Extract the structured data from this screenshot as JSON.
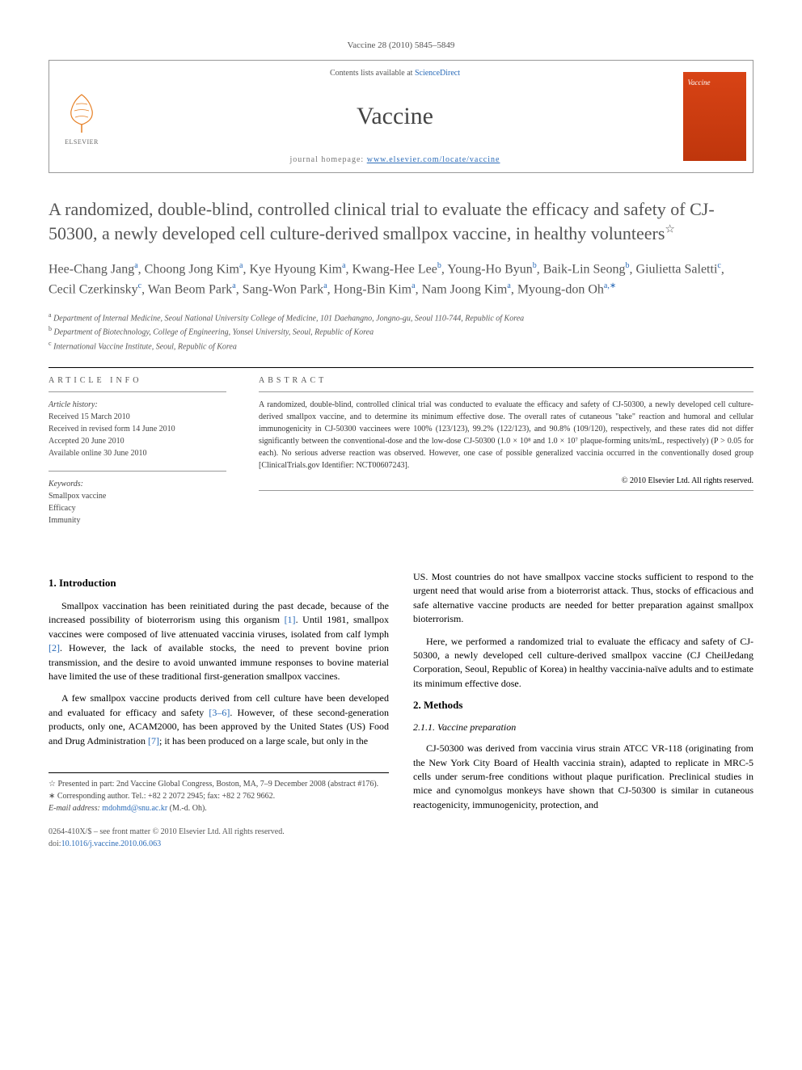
{
  "citation": "Vaccine 28 (2010) 5845–5849",
  "header": {
    "contents_prefix": "Contents lists available at ",
    "contents_link": "ScienceDirect",
    "journal": "Vaccine",
    "homepage_prefix": "journal homepage: ",
    "homepage_url": "www.elsevier.com/locate/vaccine",
    "publisher": "ELSEVIER",
    "cover_label": "Vaccine"
  },
  "title": "A randomized, double-blind, controlled clinical trial to evaluate the efficacy and safety of CJ-50300, a newly developed cell culture-derived smallpox vaccine, in healthy volunteers",
  "title_footnote_marker": "☆",
  "authors_html": "Hee-Chang Jang<sup>a</sup>, Choong Jong Kim<sup>a</sup>, Kye Hyoung Kim<sup>a</sup>, Kwang-Hee Lee<sup>b</sup>, Young-Ho Byun<sup>b</sup>, Baik-Lin Seong<sup>b</sup>, Giulietta Saletti<sup>c</sup>, Cecil Czerkinsky<sup>c</sup>, Wan Beom Park<sup>a</sup>, Sang-Won Park<sup>a</sup>, Hong-Bin Kim<sup>a</sup>, Nam Joong Kim<sup>a</sup>, Myoung-don Oh<sup>a,∗</sup>",
  "affiliations": [
    {
      "marker": "a",
      "text": "Department of Internal Medicine, Seoul National University College of Medicine, 101 Daehangno, Jongno-gu, Seoul 110-744, Republic of Korea"
    },
    {
      "marker": "b",
      "text": "Department of Biotechnology, College of Engineering, Yonsei University, Seoul, Republic of Korea"
    },
    {
      "marker": "c",
      "text": "International Vaccine Institute, Seoul, Republic of Korea"
    }
  ],
  "article_info": {
    "heading": "ARTICLE INFO",
    "history_label": "Article history:",
    "history": [
      "Received 15 March 2010",
      "Received in revised form 14 June 2010",
      "Accepted 20 June 2010",
      "Available online 30 June 2010"
    ],
    "keywords_label": "Keywords:",
    "keywords": [
      "Smallpox vaccine",
      "Efficacy",
      "Immunity"
    ]
  },
  "abstract": {
    "heading": "ABSTRACT",
    "text": "A randomized, double-blind, controlled clinical trial was conducted to evaluate the efficacy and safety of CJ-50300, a newly developed cell culture-derived smallpox vaccine, and to determine its minimum effective dose. The overall rates of cutaneous \"take\" reaction and humoral and cellular immunogenicity in CJ-50300 vaccinees were 100% (123/123), 99.2% (122/123), and 90.8% (109/120), respectively, and these rates did not differ significantly between the conventional-dose and the low-dose CJ-50300 (1.0 × 10⁸ and 1.0 × 10⁷ plaque-forming units/mL, respectively) (P > 0.05 for each). No serious adverse reaction was observed. However, one case of possible generalized vaccinia occurred in the conventionally dosed group [ClinicalTrials.gov Identifier: NCT00607243].",
    "copyright": "© 2010 Elsevier Ltd. All rights reserved."
  },
  "sections": {
    "intro_heading": "1. Introduction",
    "intro_p1": "Smallpox vaccination has been reinitiated during the past decade, because of the increased possibility of bioterrorism using this organism [1]. Until 1981, smallpox vaccines were composed of live attenuated vaccinia viruses, isolated from calf lymph [2]. However, the lack of available stocks, the need to prevent bovine prion transmission, and the desire to avoid unwanted immune responses to bovine material have limited the use of these traditional first-generation smallpox vaccines.",
    "intro_p2": "A few smallpox vaccine products derived from cell culture have been developed and evaluated for efficacy and safety [3–6]. However, of these second-generation products, only one, ACAM2000, has been approved by the United States (US) Food and Drug Administration [7]; it has been produced on a large scale, but only in the",
    "intro_p2_cont": "US. Most countries do not have smallpox vaccine stocks sufficient to respond to the urgent need that would arise from a bioterrorist attack. Thus, stocks of efficacious and safe alternative vaccine products are needed for better preparation against smallpox bioterrorism.",
    "intro_p3": "Here, we performed a randomized trial to evaluate the efficacy and safety of CJ-50300, a newly developed cell culture-derived smallpox vaccine (CJ CheilJedang Corporation, Seoul, Republic of Korea) in healthy vaccinia-naïve adults and to estimate its minimum effective dose.",
    "methods_heading": "2. Methods",
    "methods_sub1": "2.1.1. Vaccine preparation",
    "methods_p1": "CJ-50300 was derived from vaccinia virus strain ATCC VR-118 (originating from the New York City Board of Health vaccinia strain), adapted to replicate in MRC-5 cells under serum-free conditions without plaque purification. Preclinical studies in mice and cynomolgus monkeys have shown that CJ-50300 is similar in cutaneous reactogenicity, immunogenicity, protection, and"
  },
  "footnotes": {
    "presented": "Presented in part: 2nd Vaccine Global Congress, Boston, MA, 7–9 December 2008 (abstract #176).",
    "corresponding": "Corresponding author. Tel.: +82 2 2072 2945; fax: +82 2 762 9662.",
    "email_label": "E-mail address:",
    "email": "mdohmd@snu.ac.kr",
    "email_who": "(M.-d. Oh)."
  },
  "bottom": {
    "issn": "0264-410X/$ – see front matter © 2010 Elsevier Ltd. All rights reserved.",
    "doi_label": "doi:",
    "doi": "10.1016/j.vaccine.2010.06.063"
  },
  "colors": {
    "link": "#2a6bb8",
    "text_muted": "#555555",
    "cover_bg": "#d84315"
  }
}
